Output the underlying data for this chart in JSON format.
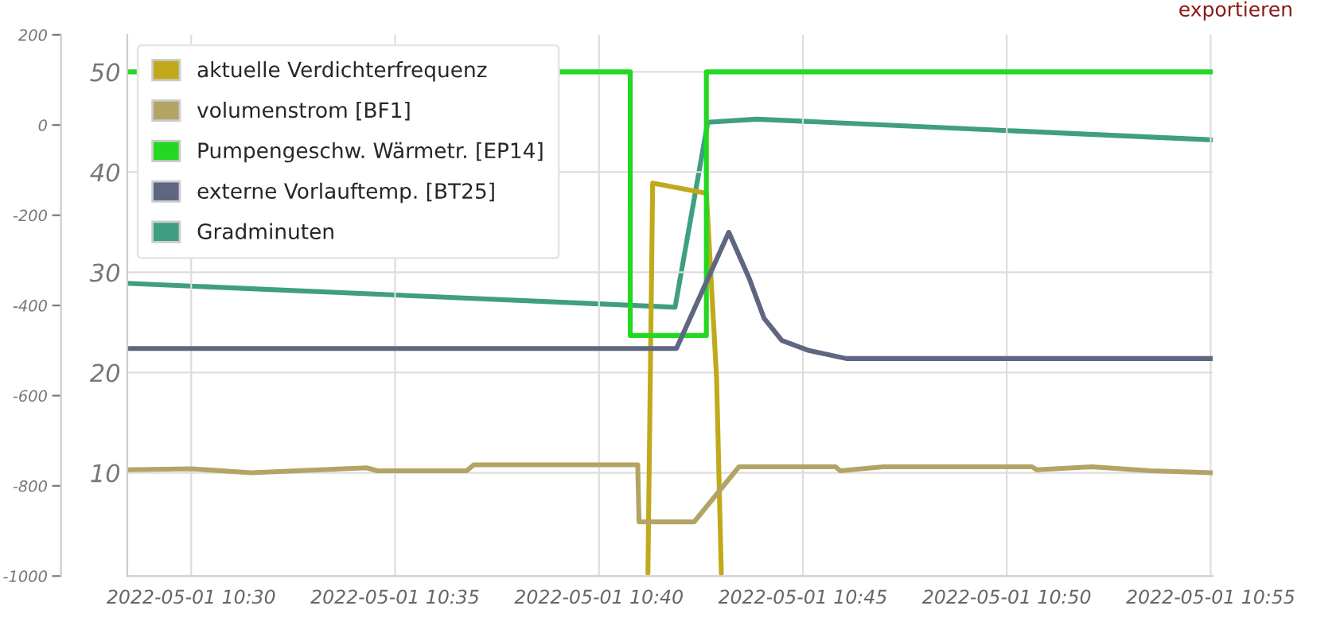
{
  "chart_data": {
    "type": "line",
    "annotations": [
      "exportieren"
    ],
    "xlim": [
      "2022-05-01T10:28:26",
      "2022-05-01T10:55:03"
    ],
    "xticks": [
      {
        "value": "2022-05-01T10:30",
        "label": "2022-05-01 10:30"
      },
      {
        "value": "2022-05-01T10:35",
        "label": "2022-05-01 10:35"
      },
      {
        "value": "2022-05-01T10:40",
        "label": "2022-05-01 10:40"
      },
      {
        "value": "2022-05-01T10:45",
        "label": "2022-05-01 10:45"
      },
      {
        "value": "2022-05-01T10:50",
        "label": "2022-05-01 10:50"
      },
      {
        "value": "2022-05-01T10:55",
        "label": "2022-05-01 10:55"
      }
    ],
    "ylim": [
      -0.3,
      53.7
    ],
    "yticks": [
      10,
      20,
      30,
      40,
      50
    ],
    "y2lim": [
      -1000,
      200
    ],
    "y2ticks": [
      -1000,
      -800,
      -600,
      -400,
      -200,
      0,
      200
    ],
    "grid": true,
    "legend": "top left",
    "series": [
      {
        "name": "aktuelle Verdichterfrequenz",
        "color": "#c0aa1c",
        "x": [
          "2022-05-01T10:41:12",
          "2022-05-01T10:41:19",
          "2022-05-01T10:42:38",
          "2022-05-01T10:42:53",
          "2022-05-01T10:43:00"
        ],
        "values": [
          0,
          38.9,
          37.9,
          19.5,
          0
        ]
      },
      {
        "name": "volumenstrom [BF1]",
        "color": "#b3a466",
        "x": [
          "2022-05-01T10:28:26",
          "2022-05-01T10:30:00",
          "2022-05-01T10:31:28",
          "2022-05-01T10:34:18",
          "2022-05-01T10:34:34",
          "2022-05-01T10:36:45",
          "2022-05-01T10:36:56",
          "2022-05-01T10:40:57",
          "2022-05-01T10:40:59",
          "2022-05-01T10:42:20",
          "2022-05-01T10:43:26",
          "2022-05-01T10:45:48",
          "2022-05-01T10:45:55",
          "2022-05-01T10:46:58",
          "2022-05-01T10:50:37",
          "2022-05-01T10:50:44",
          "2022-05-01T10:52:05",
          "2022-05-01T10:53:32",
          "2022-05-01T10:55:02"
        ],
        "values": [
          10.3,
          10.4,
          10.0,
          10.5,
          10.2,
          10.2,
          10.8,
          10.8,
          5.1,
          5.1,
          10.6,
          10.6,
          10.2,
          10.6,
          10.6,
          10.3,
          10.6,
          10.2,
          10.0
        ]
      },
      {
        "name": "Pumpengeschw. Wärmetr. [EP14]",
        "type": "step",
        "color": "#22d822",
        "x": [
          "2022-05-01T10:28:26",
          "2022-05-01T10:40:46",
          "2022-05-01T10:42:38",
          "2022-05-01T10:55:02"
        ],
        "values": [
          50,
          23.7,
          50,
          50
        ]
      },
      {
        "name": "externe Vorlauftemp. [BT25]",
        "color": "#5f6682",
        "x": [
          "2022-05-01T10:28:26",
          "2022-05-01T10:41:54",
          "2022-05-01T10:43:11",
          "2022-05-01T10:43:41",
          "2022-05-01T10:44:03",
          "2022-05-01T10:44:29",
          "2022-05-01T10:45:09",
          "2022-05-01T10:46:04",
          "2022-05-01T10:55:02"
        ],
        "values": [
          22.4,
          22.4,
          34.0,
          29.4,
          25.4,
          23.2,
          22.2,
          21.4,
          21.4
        ]
      },
      {
        "name": "Gradminuten",
        "color": "#3f9f80",
        "axis": "y2",
        "x": [
          "2022-05-01T10:28:26",
          "2022-05-01T10:41:52",
          "2022-05-01T10:42:40",
          "2022-05-01T10:43:52",
          "2022-05-01T10:55:02"
        ],
        "values": [
          -351,
          -404,
          6,
          13,
          -33
        ]
      }
    ]
  }
}
